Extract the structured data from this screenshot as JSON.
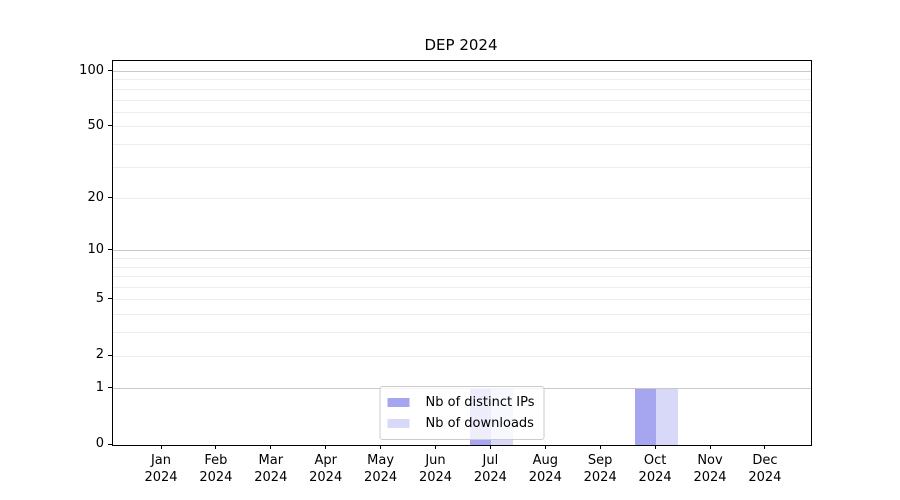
{
  "chart_data": {
    "type": "bar",
    "title": "DEP 2024",
    "x_tick_months": [
      "Jan",
      "Feb",
      "Mar",
      "Apr",
      "May",
      "Jun",
      "Jul",
      "Aug",
      "Sep",
      "Oct",
      "Nov",
      "Dec"
    ],
    "x_tick_year": "2024",
    "y_ticks": [
      0,
      1,
      2,
      5,
      10,
      20,
      50,
      100
    ],
    "y_minor_gridlines": [
      2,
      3,
      4,
      5,
      6,
      7,
      8,
      9,
      20,
      30,
      40,
      50,
      60,
      70,
      80,
      90
    ],
    "y_major_gridlines": [
      1,
      10,
      100
    ],
    "y_scale": "log1p",
    "ylim": [
      0,
      114
    ],
    "grid": true,
    "legend_position": "lower center",
    "series": [
      {
        "name": "Nb of distinct IPs",
        "color": "#a5a5f0",
        "values": [
          0,
          0,
          0,
          0,
          0,
          0,
          1,
          0,
          0,
          1,
          0,
          0
        ]
      },
      {
        "name": "Nb of downloads",
        "color": "#d8d8f8",
        "values": [
          0,
          0,
          0,
          0,
          0,
          0,
          1,
          0,
          0,
          1,
          0,
          0
        ]
      }
    ],
    "colors": {
      "grid_major": "#c9c9c9",
      "grid_minor": "#ededed",
      "spine": "#000000",
      "background": "#ffffff"
    }
  }
}
